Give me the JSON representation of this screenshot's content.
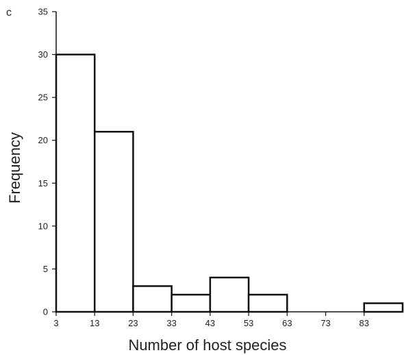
{
  "panel_label": "c",
  "chart_data": {
    "type": "bar",
    "xlabel": "Number of host species",
    "ylabel": "Frequency",
    "ylim": [
      0,
      35
    ],
    "yticks": [
      0,
      5,
      10,
      15,
      20,
      25,
      30,
      35
    ],
    "xlim": [
      3,
      93
    ],
    "xticks": [
      3,
      13,
      23,
      33,
      43,
      53,
      63,
      73,
      83
    ],
    "bins": [
      {
        "start": 3,
        "end": 13,
        "value": 30
      },
      {
        "start": 13,
        "end": 23,
        "value": 21
      },
      {
        "start": 23,
        "end": 33,
        "value": 3
      },
      {
        "start": 33,
        "end": 43,
        "value": 2
      },
      {
        "start": 43,
        "end": 53,
        "value": 4
      },
      {
        "start": 53,
        "end": 63,
        "value": 2
      },
      {
        "start": 63,
        "end": 73,
        "value": 0
      },
      {
        "start": 73,
        "end": 83,
        "value": 0
      },
      {
        "start": 83,
        "end": 93,
        "value": 1
      }
    ],
    "grid": false,
    "bar_fill": "#ffffff",
    "bar_stroke": "#111111"
  }
}
